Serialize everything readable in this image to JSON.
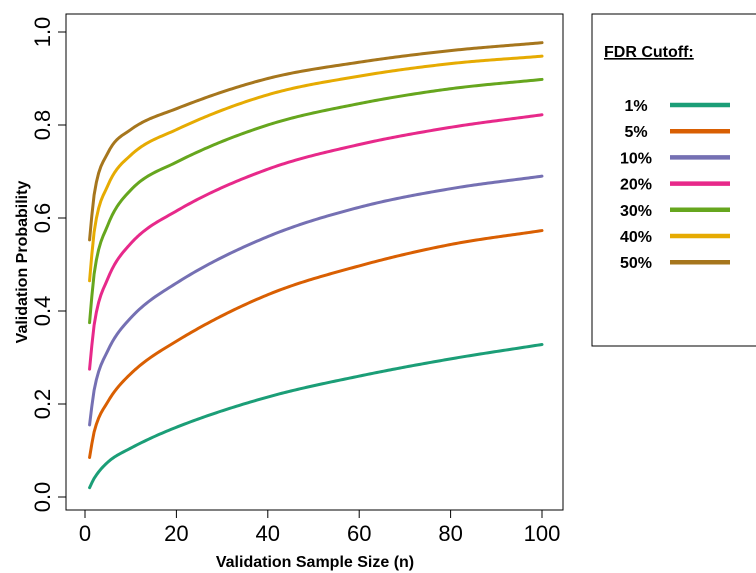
{
  "chart_data": {
    "type": "line",
    "xlabel": "Validation Sample Size (n)",
    "ylabel": "Validation Probability",
    "xlim": [
      0,
      100
    ],
    "ylim": [
      0,
      1
    ],
    "x_ticks": [
      0,
      20,
      40,
      60,
      80,
      100
    ],
    "y_ticks": [
      0.0,
      0.2,
      0.4,
      0.6,
      0.8,
      1.0
    ],
    "x_tick_labels": [
      "0",
      "20",
      "40",
      "60",
      "80",
      "100"
    ],
    "y_tick_labels": [
      "0.0",
      "0.2",
      "0.4",
      "0.6",
      "0.8",
      "1.0"
    ],
    "x": [
      1,
      2,
      5,
      10,
      20,
      40,
      60,
      80,
      100
    ],
    "legend": {
      "title": "FDR Cutoff:",
      "placement": "right, outside plot"
    },
    "grid": false,
    "series": [
      {
        "name": "1%",
        "color": "#1b9e77",
        "values": [
          0.02,
          0.04,
          0.075,
          0.105,
          0.15,
          0.215,
          0.26,
          0.297,
          0.328
        ]
      },
      {
        "name": "5%",
        "color": "#d95f02",
        "values": [
          0.085,
          0.14,
          0.205,
          0.265,
          0.335,
          0.435,
          0.497,
          0.543,
          0.573
        ]
      },
      {
        "name": "10%",
        "color": "#7570b3",
        "values": [
          0.155,
          0.23,
          0.315,
          0.385,
          0.46,
          0.56,
          0.623,
          0.663,
          0.69
        ]
      },
      {
        "name": "20%",
        "color": "#e7298a",
        "values": [
          0.275,
          0.37,
          0.47,
          0.545,
          0.615,
          0.705,
          0.758,
          0.795,
          0.822
        ]
      },
      {
        "name": "30%",
        "color": "#66a61e",
        "values": [
          0.375,
          0.48,
          0.585,
          0.66,
          0.72,
          0.8,
          0.846,
          0.878,
          0.898
        ]
      },
      {
        "name": "40%",
        "color": "#e6ab02",
        "values": [
          0.465,
          0.57,
          0.67,
          0.735,
          0.79,
          0.865,
          0.905,
          0.932,
          0.948
        ]
      },
      {
        "name": "50%",
        "color": "#a6761d",
        "values": [
          0.553,
          0.65,
          0.74,
          0.79,
          0.835,
          0.9,
          0.935,
          0.96,
          0.977
        ]
      }
    ]
  }
}
